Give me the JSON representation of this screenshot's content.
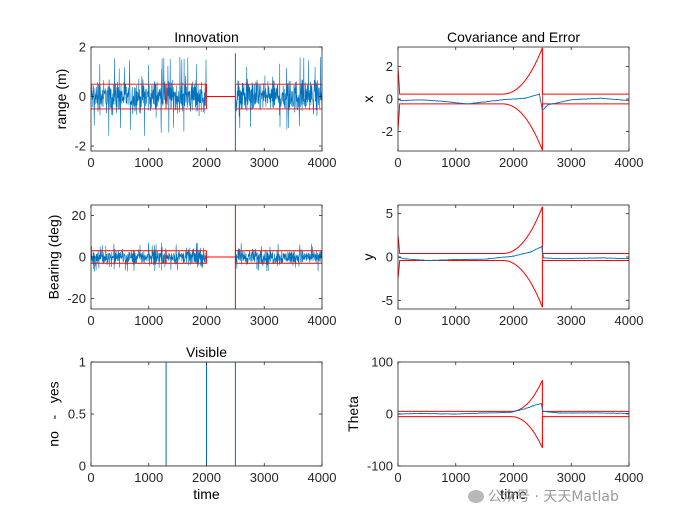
{
  "watermark": {
    "text": "公众号 · 天天Matlab"
  },
  "colors": {
    "blue": "#0072BD",
    "red": "#FF0000",
    "orange": "#D95319",
    "axis": "#262626"
  },
  "chart_data": [
    {
      "id": "innovation-range",
      "type": "line",
      "title": "Innovation",
      "xlabel": "",
      "ylabel": "range (m)",
      "xlim": [
        0,
        4000
      ],
      "ylim": [
        -2.2,
        2
      ],
      "xticks": [
        "0",
        "1000",
        "2000",
        "3000",
        "4000"
      ],
      "yticks": [
        "-2",
        "0",
        "2"
      ],
      "series": [
        {
          "kind": "noise",
          "color": "blue",
          "amplitude": 0.62,
          "peak": 1.6,
          "segments": [
            [
              0,
              1300
            ],
            [
              1300,
              2000
            ],
            [
              2500,
              4000
            ]
          ]
        },
        {
          "kind": "band",
          "color": "red",
          "bound": 0.5,
          "segments": [
            [
              0,
              1300
            ],
            [
              1300,
              2000
            ],
            [
              2500,
              4000
            ]
          ]
        },
        {
          "kind": "line",
          "color": "red",
          "x": [
            2000,
            2500
          ],
          "y": [
            0,
            0
          ]
        },
        {
          "kind": "spike",
          "color": "blue",
          "x": 2500,
          "y": [
            -2.2,
            1.75
          ]
        }
      ]
    },
    {
      "id": "covariance-x",
      "type": "line",
      "title": "Covariance and Error",
      "xlabel": "",
      "ylabel": "x",
      "xlim": [
        0,
        4000
      ],
      "ylim": [
        -3.2,
        3.2
      ],
      "xticks": [
        "0",
        "1000",
        "2000",
        "3000",
        "4000"
      ],
      "yticks": [
        "-2",
        "0",
        "2"
      ],
      "series": [
        {
          "kind": "envelope",
          "color": "red",
          "start": 1.9,
          "settle": 0.3,
          "peak": 3.15,
          "grow_from": 1800,
          "grow_to": 2500
        },
        {
          "kind": "error",
          "color": "blue",
          "points": [
            [
              0,
              0
            ],
            [
              50,
              -0.1
            ],
            [
              400,
              -0.05
            ],
            [
              800,
              -0.15
            ],
            [
              1200,
              -0.3
            ],
            [
              1400,
              -0.22
            ],
            [
              1800,
              -0.05
            ],
            [
              2200,
              0.05
            ],
            [
              2450,
              0.3
            ],
            [
              2500,
              -0.7
            ],
            [
              2600,
              -0.35
            ],
            [
              3000,
              -0.05
            ],
            [
              3500,
              0.05
            ],
            [
              4000,
              -0.1
            ]
          ]
        }
      ]
    },
    {
      "id": "innovation-bearing",
      "type": "line",
      "title": "",
      "xlabel": "",
      "ylabel": "Bearing (deg)",
      "xlim": [
        0,
        4000
      ],
      "ylim": [
        -25,
        25
      ],
      "xticks": [
        "0",
        "1000",
        "2000",
        "3000",
        "4000"
      ],
      "yticks": [
        "-20",
        "0",
        "20"
      ],
      "series": [
        {
          "kind": "noise",
          "color": "blue",
          "amplitude": 3.5,
          "peak": 7,
          "segments": [
            [
              0,
              1300
            ],
            [
              1300,
              2000
            ],
            [
              2500,
              4000
            ]
          ]
        },
        {
          "kind": "band",
          "color": "red",
          "bound": 3,
          "segments": [
            [
              0,
              1300
            ],
            [
              1300,
              2000
            ],
            [
              2500,
              4000
            ]
          ]
        },
        {
          "kind": "line",
          "color": "red",
          "x": [
            2000,
            2500
          ],
          "y": [
            0,
            0
          ]
        },
        {
          "kind": "spike",
          "color": "red",
          "x": 2500,
          "y": [
            -25,
            25
          ]
        }
      ]
    },
    {
      "id": "covariance-y",
      "type": "line",
      "title": "",
      "xlabel": "",
      "ylabel": "y",
      "xlim": [
        0,
        4000
      ],
      "ylim": [
        -6,
        6
      ],
      "xticks": [
        "0",
        "1000",
        "2000",
        "3000",
        "4000"
      ],
      "yticks": [
        "-5",
        "0",
        "5"
      ],
      "series": [
        {
          "kind": "envelope",
          "color": "red",
          "start": 2.5,
          "settle": 0.4,
          "peak": 5.8,
          "grow_from": 1800,
          "grow_to": 2500
        },
        {
          "kind": "error",
          "color": "blue",
          "points": [
            [
              0,
              0
            ],
            [
              100,
              -0.2
            ],
            [
              500,
              -0.4
            ],
            [
              1000,
              -0.3
            ],
            [
              1500,
              -0.25
            ],
            [
              2000,
              0.1
            ],
            [
              2300,
              0.6
            ],
            [
              2490,
              1.2
            ],
            [
              2520,
              -0.1
            ],
            [
              2800,
              -0.2
            ],
            [
              3500,
              -0.1
            ],
            [
              4000,
              -0.2
            ]
          ]
        }
      ]
    },
    {
      "id": "visible",
      "type": "line",
      "title": "Visible",
      "xlabel": "time",
      "ylabel": "no   -   yes",
      "xlim": [
        0,
        4000
      ],
      "ylim": [
        0,
        1
      ],
      "xticks": [
        "0",
        "1000",
        "2000",
        "3000",
        "4000"
      ],
      "yticks": [
        "0",
        "0.5",
        "1"
      ],
      "series": [
        {
          "kind": "step",
          "color": "blue",
          "x": [
            0,
            1300,
            1300,
            1300,
            1300,
            2000,
            2000,
            2000,
            2000,
            2500,
            2500,
            2500,
            2500,
            4000
          ],
          "y": [
            1,
            1,
            0,
            0,
            1,
            1,
            0,
            0,
            1,
            1,
            0,
            0,
            1,
            1
          ]
        },
        {
          "kind": "line",
          "color": "orange",
          "x": [
            0,
            4000
          ],
          "y": [
            0,
            0
          ]
        }
      ]
    },
    {
      "id": "covariance-theta",
      "type": "line",
      "title": "",
      "xlabel": "time",
      "ylabel": "Theta",
      "xlim": [
        0,
        4000
      ],
      "ylim": [
        -100,
        100
      ],
      "xticks": [
        "0",
        "1000",
        "2000",
        "3000",
        "4000"
      ],
      "yticks": [
        "-100",
        "0",
        "100"
      ],
      "series": [
        {
          "kind": "envelope",
          "color": "red",
          "start": 5,
          "settle": 5,
          "peak": 65,
          "grow_from": 1950,
          "grow_to": 2500
        },
        {
          "kind": "error",
          "color": "blue",
          "points": [
            [
              0,
              0
            ],
            [
              400,
              1
            ],
            [
              1000,
              0
            ],
            [
              1500,
              2
            ],
            [
              1950,
              3
            ],
            [
              2200,
              10
            ],
            [
              2400,
              18
            ],
            [
              2480,
              20
            ],
            [
              2510,
              5
            ],
            [
              2800,
              2
            ],
            [
              3500,
              2
            ],
            [
              4000,
              1
            ]
          ]
        }
      ]
    }
  ]
}
